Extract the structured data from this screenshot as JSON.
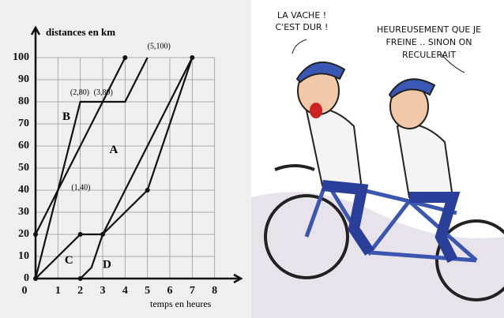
{
  "chart_data": {
    "type": "line",
    "y_label": "distances en km",
    "x_label": "temps en heures",
    "xlim": [
      0,
      9
    ],
    "ylim": [
      0,
      110
    ],
    "xticks": [
      0,
      1,
      2,
      3,
      4,
      5,
      6,
      7,
      8
    ],
    "yticks": [
      0,
      10,
      20,
      30,
      40,
      50,
      60,
      70,
      80,
      90,
      100
    ],
    "grid": true,
    "annotations": [
      "(2,80)",
      "(3,80)",
      "(5,100)",
      "(1,40)"
    ],
    "series": [
      {
        "name": "A",
        "color": "#111111",
        "x": [
          0,
          1,
          3,
          4,
          5
        ],
        "values": [
          0,
          40,
          80,
          80,
          100
        ]
      },
      {
        "name": "B",
        "color": "#111111",
        "x": [
          0,
          1,
          2,
          3,
          4
        ],
        "values": [
          20,
          40,
          80,
          80,
          100
        ]
      },
      {
        "name": "C",
        "color": "#111111",
        "x": [
          0,
          2,
          3,
          7
        ],
        "values": [
          0,
          20,
          20,
          100
        ]
      },
      {
        "name": "D",
        "color": "#111111",
        "x": [
          2,
          2.5,
          3,
          5,
          7
        ],
        "values": [
          0,
          5,
          20,
          40,
          100
        ]
      }
    ]
  },
  "cartoon": {
    "left_bubble": [
      "LA VACHE !",
      "C'EST DUR !"
    ],
    "right_bubble": [
      "HEUREUSEMENT QUE JE",
      "FREINE .. SINON ON",
      "RECULERAIT"
    ]
  }
}
